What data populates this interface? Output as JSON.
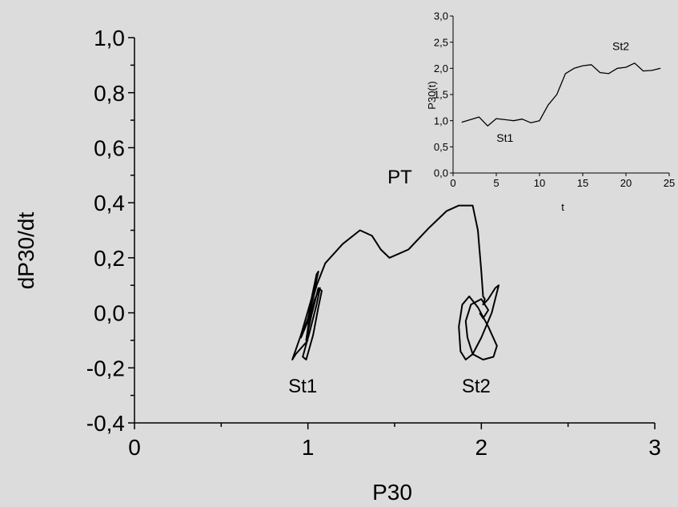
{
  "chart_data": [
    {
      "type": "line",
      "title": "",
      "xlabel": "P30",
      "ylabel": "dP30/dt",
      "xlim": [
        0,
        3
      ],
      "ylim": [
        -0.4,
        1.0
      ],
      "x_ticks": [
        "0",
        "1",
        "2",
        "3"
      ],
      "x_minor_ticks": [
        0.5,
        1.5,
        2.5
      ],
      "y_ticks": [
        "-0,4",
        "-0,2",
        "0,0",
        "0,2",
        "0,4",
        "0,6",
        "0,8",
        "1,0"
      ],
      "y_minor_ticks": [
        -0.3,
        -0.1,
        0.1,
        0.3,
        0.5,
        0.7,
        0.9
      ],
      "grid": false,
      "color": "#000000",
      "annotations": [
        {
          "text": "St1",
          "x": 0.97,
          "y": -0.29
        },
        {
          "text": "St2",
          "x": 1.97,
          "y": -0.29
        },
        {
          "text": "PT",
          "x": 1.53,
          "y": 0.47
        }
      ],
      "series": [
        {
          "x": [
            1.0,
            0.93,
            0.91,
            0.96,
            1.02,
            1.05,
            1.06,
            1.04,
            1.0,
            0.96,
            1.0,
            1.04,
            1.07,
            1.05,
            1.01,
            0.97,
            0.99,
            1.03,
            1.06,
            1.08,
            1.06,
            1.02,
            0.99,
            1.02,
            1.05,
            1.1,
            1.2,
            1.3,
            1.37,
            1.42,
            1.47,
            1.58,
            1.7,
            1.8,
            1.87,
            1.95,
            1.98,
            2.0,
            2.01,
            2.02,
            2.01,
            2.04,
            2.08,
            2.1,
            2.06,
            2.0,
            1.95,
            1.91,
            1.88,
            1.87,
            1.89,
            1.93,
            1.98,
            2.04,
            2.09,
            2.07,
            2.01,
            1.95,
            1.92,
            1.91,
            1.94,
            2.0,
            2.04,
            2.01,
            1.99
          ],
          "y": [
            -0.1,
            -0.15,
            -0.17,
            -0.08,
            0.05,
            0.14,
            0.15,
            0.09,
            -0.02,
            -0.09,
            -0.03,
            0.05,
            0.09,
            0.03,
            -0.07,
            -0.16,
            -0.17,
            -0.08,
            0.02,
            0.08,
            0.09,
            -0.01,
            -0.1,
            0.03,
            0.1,
            0.18,
            0.25,
            0.3,
            0.28,
            0.23,
            0.2,
            0.23,
            0.31,
            0.37,
            0.39,
            0.39,
            0.3,
            0.15,
            0.06,
            0.05,
            0.03,
            0.05,
            0.09,
            0.1,
            0.0,
            -0.09,
            -0.15,
            -0.17,
            -0.14,
            -0.05,
            0.03,
            0.06,
            0.02,
            -0.05,
            -0.12,
            -0.16,
            -0.17,
            -0.15,
            -0.09,
            -0.03,
            0.03,
            0.05,
            0.01,
            -0.02,
            0.0
          ]
        }
      ]
    },
    {
      "type": "line",
      "title": "",
      "xlabel": "t",
      "ylabel": "P30(t)",
      "xlim": [
        0,
        25
      ],
      "ylim": [
        0.0,
        3.0
      ],
      "x_ticks": [
        "0",
        "5",
        "10",
        "15",
        "20",
        "25"
      ],
      "y_ticks": [
        "0,0",
        "0,5",
        "1,0",
        "1,5",
        "2,0",
        "2,5",
        "3,0"
      ],
      "grid": false,
      "color": "#000000",
      "annotations": [
        {
          "text": "St1",
          "x": 6.0,
          "y": 0.6
        },
        {
          "text": "St2",
          "x": 19.4,
          "y": 2.35
        }
      ],
      "series": [
        {
          "x": [
            1,
            2,
            3,
            4,
            5,
            6,
            7,
            8,
            9,
            10,
            11,
            12,
            13,
            14,
            15,
            16,
            17,
            18,
            19,
            20,
            21,
            22,
            23,
            24
          ],
          "y": [
            0.97,
            1.02,
            1.07,
            0.9,
            1.04,
            1.02,
            1.0,
            1.03,
            0.96,
            1.0,
            1.3,
            1.5,
            1.9,
            2.0,
            2.05,
            2.07,
            1.92,
            1.9,
            2.0,
            2.02,
            2.1,
            1.95,
            1.96,
            2.0
          ]
        }
      ]
    }
  ]
}
